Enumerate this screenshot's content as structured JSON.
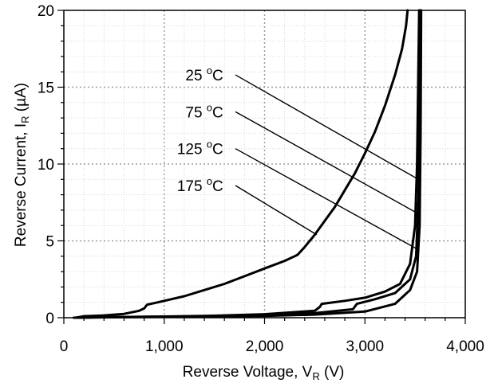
{
  "chart_data": {
    "type": "line",
    "title": "",
    "xlabel": "Reverse Voltage, V",
    "xlabel_sub": "R",
    "xlabel_unit": " (V)",
    "ylabel": "Reverse Current, I",
    "ylabel_sub": "R",
    "ylabel_unit": " (µA)",
    "xlim": [
      0,
      4000
    ],
    "ylim": [
      0,
      20
    ],
    "grid": true,
    "x_ticks": [
      0,
      1000,
      2000,
      3000,
      4000
    ],
    "x_tick_labels": [
      "0",
      "1,000",
      "2,000",
      "3,000",
      "4,000"
    ],
    "y_ticks": [
      0,
      5,
      10,
      15,
      20
    ],
    "y_tick_labels": [
      "0",
      "5",
      "10",
      "15",
      "20"
    ],
    "line_color": "#000000",
    "series": [
      {
        "name": "25 °C",
        "points": [
          [
            100,
            0
          ],
          [
            500,
            0.03
          ],
          [
            1000,
            0.05
          ],
          [
            1500,
            0.08
          ],
          [
            2000,
            0.12
          ],
          [
            2500,
            0.2
          ],
          [
            3000,
            0.4
          ],
          [
            3300,
            0.9
          ],
          [
            3450,
            1.8
          ],
          [
            3520,
            3
          ],
          [
            3545,
            6
          ],
          [
            3555,
            12
          ],
          [
            3560,
            20
          ]
        ]
      },
      {
        "name": "75 °C",
        "points": [
          [
            100,
            0
          ],
          [
            500,
            0.04
          ],
          [
            1000,
            0.07
          ],
          [
            1500,
            0.1
          ],
          [
            2000,
            0.16
          ],
          [
            2500,
            0.3
          ],
          [
            2880,
            0.55
          ],
          [
            2920,
            0.9
          ],
          [
            3100,
            1.2
          ],
          [
            3300,
            1.6
          ],
          [
            3450,
            2.5
          ],
          [
            3510,
            4
          ],
          [
            3535,
            8
          ],
          [
            3545,
            14
          ],
          [
            3550,
            20
          ]
        ]
      },
      {
        "name": "125 °C",
        "points": [
          [
            100,
            0
          ],
          [
            500,
            0.04
          ],
          [
            1000,
            0.08
          ],
          [
            1500,
            0.13
          ],
          [
            2000,
            0.23
          ],
          [
            2500,
            0.45
          ],
          [
            2550,
            0.7
          ],
          [
            2570,
            0.9
          ],
          [
            2800,
            1.1
          ],
          [
            3000,
            1.3
          ],
          [
            3200,
            1.7
          ],
          [
            3350,
            2.2
          ],
          [
            3450,
            3.5
          ],
          [
            3500,
            6
          ],
          [
            3520,
            10
          ],
          [
            3530,
            15
          ],
          [
            3540,
            20
          ]
        ]
      },
      {
        "name": "175 °C",
        "points": [
          [
            120,
            0
          ],
          [
            200,
            0.1
          ],
          [
            400,
            0.15
          ],
          [
            600,
            0.25
          ],
          [
            750,
            0.45
          ],
          [
            800,
            0.6
          ],
          [
            830,
            0.85
          ],
          [
            900,
            0.95
          ],
          [
            1000,
            1.1
          ],
          [
            1200,
            1.4
          ],
          [
            1400,
            1.8
          ],
          [
            1600,
            2.2
          ],
          [
            1800,
            2.7
          ],
          [
            2000,
            3.2
          ],
          [
            2200,
            3.7
          ],
          [
            2300,
            4.0
          ],
          [
            2330,
            4.1
          ],
          [
            2400,
            4.6
          ],
          [
            2500,
            5.4
          ],
          [
            2600,
            6.3
          ],
          [
            2700,
            7.2
          ],
          [
            2800,
            8.3
          ],
          [
            2900,
            9.4
          ],
          [
            3000,
            10.7
          ],
          [
            3100,
            12.1
          ],
          [
            3200,
            13.8
          ],
          [
            3300,
            15.8
          ],
          [
            3370,
            17.5
          ],
          [
            3410,
            19
          ],
          [
            3425,
            20
          ]
        ]
      }
    ],
    "annotations": [
      {
        "text": "25 ",
        "sup": "o",
        "unit": "C",
        "label_at": [
          1700,
          15.8
        ],
        "line_from": [
          1710,
          15.8
        ],
        "line_to": [
          3560,
          8.9
        ]
      },
      {
        "text": "75 ",
        "sup": "o",
        "unit": "C",
        "label_at": [
          1700,
          13.4
        ],
        "line_from": [
          1710,
          13.4
        ],
        "line_to": [
          3550,
          6.7
        ]
      },
      {
        "text": "125 ",
        "sup": "o",
        "unit": "C",
        "label_at": [
          1700,
          11.0
        ],
        "line_from": [
          1710,
          11.0
        ],
        "line_to": [
          3540,
          4.4
        ]
      },
      {
        "text": "175 ",
        "sup": "o",
        "unit": "C",
        "label_at": [
          1700,
          8.6
        ],
        "line_from": [
          1710,
          8.6
        ],
        "line_to": [
          2520,
          5.4
        ]
      }
    ]
  }
}
